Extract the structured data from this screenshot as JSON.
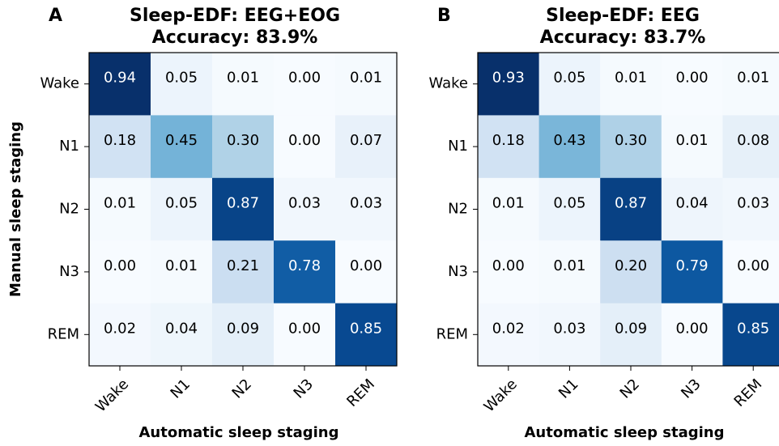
{
  "chart_data": [
    {
      "type": "heatmap",
      "panel": "A",
      "title": "Sleep-EDF: EEG+EOG",
      "subtitle": "Accuracy: 83.9%",
      "x_label": "Automatic sleep staging",
      "y_label": "Manual sleep staging",
      "x_categories": [
        "Wake",
        "N1",
        "N2",
        "N3",
        "REM"
      ],
      "y_categories": [
        "Wake",
        "N1",
        "N2",
        "N3",
        "REM"
      ],
      "colormap": "Blues",
      "values": [
        [
          0.94,
          0.05,
          0.01,
          0.0,
          0.01
        ],
        [
          0.18,
          0.45,
          0.3,
          0.0,
          0.07
        ],
        [
          0.01,
          0.05,
          0.87,
          0.03,
          0.03
        ],
        [
          0.0,
          0.01,
          0.21,
          0.78,
          0.0
        ],
        [
          0.02,
          0.04,
          0.09,
          0.0,
          0.85
        ]
      ],
      "value_labels": [
        [
          "0.94",
          "0.05",
          "0.01",
          "0.00",
          "0.01"
        ],
        [
          "0.18",
          "0.45",
          "0.30",
          "0.00",
          "0.07"
        ],
        [
          "0.01",
          "0.05",
          "0.87",
          "0.03",
          "0.03"
        ],
        [
          "0.00",
          "0.01",
          "0.21",
          "0.78",
          "0.00"
        ],
        [
          "0.02",
          "0.04",
          "0.09",
          "0.00",
          "0.85"
        ]
      ]
    },
    {
      "type": "heatmap",
      "panel": "B",
      "title": "Sleep-EDF: EEG",
      "subtitle": "Accuracy: 83.7%",
      "x_label": "Automatic sleep staging",
      "x_categories": [
        "Wake",
        "N1",
        "N2",
        "N3",
        "REM"
      ],
      "y_categories": [
        "Wake",
        "N1",
        "N2",
        "N3",
        "REM"
      ],
      "colormap": "Blues",
      "values": [
        [
          0.93,
          0.05,
          0.01,
          0.0,
          0.01
        ],
        [
          0.18,
          0.43,
          0.3,
          0.01,
          0.08
        ],
        [
          0.01,
          0.05,
          0.87,
          0.04,
          0.03
        ],
        [
          0.0,
          0.01,
          0.2,
          0.79,
          0.0
        ],
        [
          0.02,
          0.03,
          0.09,
          0.0,
          0.85
        ]
      ],
      "value_labels": [
        [
          "0.93",
          "0.05",
          "0.01",
          "0.00",
          "0.01"
        ],
        [
          "0.18",
          "0.43",
          "0.30",
          "0.01",
          "0.08"
        ],
        [
          "0.01",
          "0.05",
          "0.87",
          "0.04",
          "0.03"
        ],
        [
          "0.00",
          "0.01",
          "0.20",
          "0.79",
          "0.00"
        ],
        [
          "0.02",
          "0.03",
          "0.09",
          "0.00",
          "0.85"
        ]
      ]
    }
  ]
}
